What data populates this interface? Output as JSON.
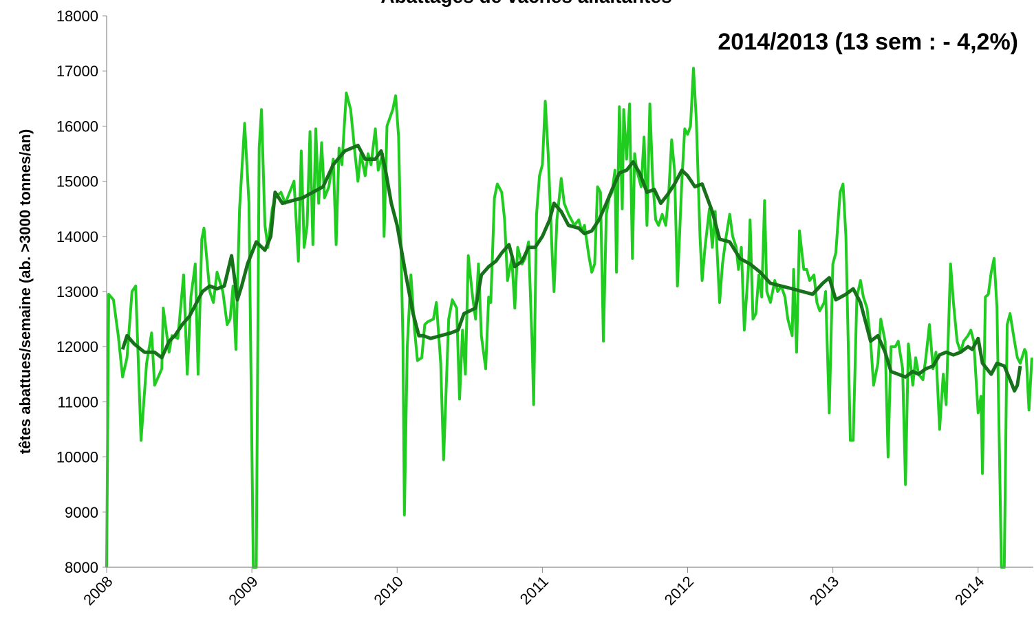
{
  "chart_data": {
    "type": "line",
    "title": "Abattages de  vaches allaitantes",
    "annotation": "2014/2013 (13 sem : - 4,2%)",
    "y_label": "têtes abattues/semaine (ab. >3000 tonnes/an)",
    "xlim": [
      2008,
      2014.38
    ],
    "xticks": [
      2008,
      2009,
      2010,
      2011,
      2012,
      2013,
      2014
    ],
    "ylim": [
      8000,
      18000
    ],
    "yticks": [
      8000,
      9000,
      10000,
      11000,
      12000,
      13000,
      14000,
      15000,
      16000,
      17000,
      18000
    ],
    "grid": true,
    "series": [
      {
        "color": "#1fcc1f",
        "x": [
          2008.0,
          2008.014,
          2008.047,
          2008.08,
          2008.11,
          2008.14,
          2008.175,
          2008.2,
          2008.237,
          2008.275,
          2008.31,
          2008.33,
          2008.38,
          2008.39,
          2008.43,
          2008.45,
          2008.49,
          2008.53,
          2008.555,
          2008.58,
          2008.61,
          2008.63,
          2008.655,
          2008.67,
          2008.71,
          2008.735,
          2008.76,
          2008.8,
          2008.83,
          2008.85,
          2008.87,
          2008.89,
          2008.915,
          2008.95,
          2008.98,
          2009.01,
          2009.03,
          2009.05,
          2009.066,
          2009.09,
          2009.11,
          2009.14,
          2009.16,
          2009.2,
          2009.23,
          2009.29,
          2009.32,
          2009.34,
          2009.36,
          2009.38,
          2009.4,
          2009.42,
          2009.44,
          2009.46,
          2009.48,
          2009.5,
          2009.53,
          2009.56,
          2009.58,
          2009.6,
          2009.62,
          2009.65,
          2009.68,
          2009.71,
          2009.73,
          2009.75,
          2009.78,
          2009.8,
          2009.82,
          2009.85,
          2009.87,
          2009.9,
          2009.91,
          2009.93,
          2009.97,
          2009.99,
          2010.01,
          2010.04,
          2010.05,
          2010.07,
          2010.095,
          2010.12,
          2010.14,
          2010.17,
          2010.19,
          2010.21,
          2010.25,
          2010.27,
          2010.3,
          2010.32,
          2010.355,
          2010.38,
          2010.41,
          2010.43,
          2010.45,
          2010.47,
          2010.49,
          2010.52,
          2010.54,
          2010.56,
          2010.58,
          2010.61,
          2010.63,
          2010.645,
          2010.67,
          2010.69,
          2010.72,
          2010.74,
          2010.76,
          2010.79,
          2010.81,
          2010.83,
          2010.86,
          2010.88,
          2010.905,
          2010.93,
          2010.94,
          2010.96,
          2010.98,
          2011.0,
          2011.02,
          2011.04,
          2011.07,
          2011.08,
          2011.1,
          2011.13,
          2011.15,
          2011.18,
          2011.2,
          2011.22,
          2011.25,
          2011.27,
          2011.29,
          2011.32,
          2011.34,
          2011.36,
          2011.38,
          2011.4,
          2011.42,
          2011.44,
          2011.46,
          2011.48,
          2011.5,
          2011.51,
          2011.53,
          2011.55,
          2011.56,
          2011.58,
          2011.6,
          2011.62,
          2011.635,
          2011.65,
          2011.68,
          2011.7,
          2011.72,
          2011.74,
          2011.76,
          2011.78,
          2011.8,
          2011.825,
          2011.85,
          2011.87,
          2011.89,
          2011.91,
          2011.93,
          2011.96,
          2011.98,
          2012.0,
          2012.02,
          2012.04,
          2012.06,
          2012.085,
          2012.1,
          2012.12,
          2012.15,
          2012.17,
          2012.19,
          2012.22,
          2012.24,
          2012.265,
          2012.29,
          2012.31,
          2012.335,
          2012.35,
          2012.37,
          2012.39,
          2012.42,
          2012.43,
          2012.45,
          2012.47,
          2012.49,
          2012.51,
          2012.53,
          2012.545,
          2012.57,
          2012.6,
          2012.62,
          2012.645,
          2012.67,
          2012.69,
          2012.72,
          2012.73,
          2012.75,
          2012.77,
          2012.8,
          2012.82,
          2012.84,
          2012.87,
          2012.89,
          2012.91,
          2012.94,
          2012.95,
          2012.975,
          2013.0,
          2013.02,
          2013.05,
          2013.07,
          2013.09,
          2013.12,
          2013.14,
          2013.165,
          2013.19,
          2013.21,
          2013.235,
          2013.26,
          2013.28,
          2013.31,
          2013.33,
          2013.36,
          2013.38,
          2013.4,
          2013.43,
          2013.45,
          2013.48,
          2013.5,
          2013.52,
          2013.55,
          2013.57,
          2013.59,
          2013.62,
          2013.64,
          2013.665,
          2013.69,
          2013.71,
          2013.735,
          2013.76,
          2013.78,
          2013.81,
          2013.83,
          2013.855,
          2013.88,
          2013.9,
          2013.93,
          2013.95,
          2013.97,
          2014.0,
          2014.02,
          2014.03,
          2014.05,
          2014.07,
          2014.09,
          2014.11,
          2014.13,
          2014.16,
          2014.18,
          2014.2,
          2014.22,
          2014.25,
          2014.27,
          2014.29,
          2014.32,
          2014.33,
          2014.35,
          2014.37
        ],
        "values": [
          8000,
          12950,
          12850,
          12200,
          11450,
          11800,
          13000,
          13100,
          10300,
          11700,
          12250,
          11300,
          11600,
          12700,
          11900,
          12200,
          12150,
          13300,
          11500,
          12900,
          13500,
          11500,
          13950,
          14150,
          13000,
          12800,
          13350,
          13000,
          12400,
          12500,
          13100,
          11950,
          14500,
          16050,
          14600,
          8000,
          8000,
          15600,
          16300,
          14200,
          13800,
          14500,
          14700,
          14800,
          14600,
          15000,
          13550,
          15550,
          13800,
          14200,
          15900,
          13850,
          15950,
          14600,
          15700,
          14700,
          14900,
          15400,
          13850,
          15600,
          15300,
          16600,
          16300,
          15500,
          15000,
          15500,
          15100,
          15500,
          15300,
          15950,
          15200,
          15500,
          14000,
          16000,
          16300,
          16550,
          15800,
          12100,
          8950,
          12000,
          13300,
          12300,
          11750,
          11800,
          12400,
          12450,
          12500,
          12800,
          11700,
          9950,
          12500,
          12850,
          12700,
          11050,
          12300,
          11500,
          13650,
          12900,
          12500,
          13500,
          12200,
          11600,
          12900,
          12800,
          14700,
          14950,
          14800,
          14300,
          13200,
          13600,
          12700,
          13800,
          13500,
          13600,
          13900,
          12000,
          10950,
          14400,
          15100,
          15300,
          16450,
          15500,
          13500,
          13000,
          14300,
          15050,
          14600,
          14400,
          14300,
          14200,
          14300,
          14100,
          14200,
          13650,
          13350,
          13500,
          14900,
          14800,
          12100,
          14400,
          14700,
          14800,
          15200,
          13350,
          16350,
          14500,
          16300,
          15400,
          16400,
          13600,
          15500,
          15200,
          14900,
          15800,
          14200,
          16400,
          15000,
          14300,
          14200,
          14400,
          14200,
          14800,
          15750,
          15200,
          13100,
          15000,
          15950,
          15850,
          16000,
          17050,
          16100,
          14000,
          13200,
          13800,
          14500,
          13800,
          14450,
          12800,
          13500,
          14000,
          14400,
          14000,
          13800,
          13400,
          13800,
          12300,
          13500,
          14300,
          12500,
          12600,
          13300,
          12900,
          14650,
          13000,
          12800,
          13200,
          13000,
          13100,
          12900,
          12500,
          12200,
          13400,
          11900,
          14100,
          13400,
          13400,
          13200,
          13300,
          12800,
          12650,
          12800,
          13000,
          10800,
          13500,
          13700,
          14800,
          14950,
          14000,
          10300,
          10300,
          12900,
          13200,
          12900,
          12700,
          12100,
          11300,
          11700,
          12500,
          12100,
          10000,
          12000,
          12000,
          12100,
          11600,
          9500,
          12050,
          11300,
          11800,
          11500,
          11400,
          11800,
          12400,
          11600,
          11900,
          10500,
          11500,
          10950,
          13500,
          12800,
          12100,
          11900,
          12100,
          12200,
          12300,
          12100,
          10800,
          11100,
          9700,
          12900,
          12950,
          13350,
          13600,
          12700,
          8000,
          8000,
          12400,
          12600,
          12100,
          11800,
          11700,
          11950,
          11900,
          10850,
          11800
        ]
      },
      {
        "color": "#17701a",
        "x": [
          2008.11,
          2008.14,
          2008.19,
          2008.26,
          2008.33,
          2008.38,
          2008.43,
          2008.47,
          2008.52,
          2008.57,
          2008.62,
          2008.66,
          2008.71,
          2008.76,
          2008.81,
          2008.86,
          2008.9,
          2008.93,
          2008.97,
          2009.03,
          2009.09,
          2009.13,
          2009.16,
          2009.21,
          2009.28,
          2009.35,
          2009.42,
          2009.49,
          2009.56,
          2009.64,
          2009.73,
          2009.78,
          2009.85,
          2009.89,
          2009.92,
          2009.96,
          2010.0,
          2010.06,
          2010.11,
          2010.15,
          2010.18,
          2010.23,
          2010.3,
          2010.37,
          2010.42,
          2010.46,
          2010.54,
          2010.58,
          2010.63,
          2010.68,
          2010.72,
          2010.77,
          2010.81,
          2010.86,
          2010.905,
          2010.95,
          2011.0,
          2011.05,
          2011.08,
          2011.13,
          2011.18,
          2011.25,
          2011.29,
          2011.34,
          2011.39,
          2011.44,
          2011.48,
          2011.53,
          2011.58,
          2011.625,
          2011.67,
          2011.72,
          2011.77,
          2011.815,
          2011.86,
          2011.91,
          2011.96,
          2012.0,
          2012.05,
          2012.1,
          2012.17,
          2012.22,
          2012.29,
          2012.36,
          2012.43,
          2012.5,
          2012.57,
          2012.645,
          2012.72,
          2012.79,
          2012.86,
          2012.93,
          2012.975,
          2013.02,
          2013.09,
          2013.14,
          2013.19,
          2013.26,
          2013.31,
          2013.36,
          2013.4,
          2013.45,
          2013.5,
          2013.55,
          2013.59,
          2013.64,
          2013.69,
          2013.735,
          2013.78,
          2013.83,
          2013.88,
          2013.93,
          2013.96,
          2014.0,
          2014.03,
          2014.09,
          2014.13,
          2014.18,
          2014.22,
          2014.25,
          2014.27,
          2014.29
        ],
        "values": [
          11950,
          12200,
          12050,
          11900,
          11900,
          11800,
          12100,
          12200,
          12400,
          12550,
          12800,
          13000,
          13100,
          13050,
          13100,
          13650,
          12850,
          13100,
          13500,
          13900,
          13750,
          14000,
          14800,
          14600,
          14650,
          14700,
          14800,
          14900,
          15300,
          15550,
          15650,
          15400,
          15400,
          15550,
          15200,
          14600,
          14200,
          13300,
          12600,
          12200,
          12200,
          12150,
          12200,
          12250,
          12300,
          12600,
          12700,
          13300,
          13450,
          13550,
          13700,
          13850,
          13450,
          13550,
          13800,
          13800,
          14000,
          14300,
          14600,
          14450,
          14200,
          14150,
          14050,
          14100,
          14300,
          14600,
          14850,
          15150,
          15200,
          15350,
          15150,
          14800,
          14850,
          14600,
          14750,
          14950,
          15200,
          15100,
          14900,
          14950,
          14450,
          13950,
          13900,
          13600,
          13500,
          13350,
          13150,
          13100,
          13050,
          13000,
          12950,
          13150,
          13250,
          12850,
          12950,
          13050,
          12800,
          12100,
          12200,
          11900,
          11550,
          11500,
          11450,
          11550,
          11500,
          11600,
          11650,
          11850,
          11900,
          11850,
          11900,
          12000,
          11950,
          12150,
          11700,
          11500,
          11700,
          11650,
          11400,
          11200,
          11300,
          11650
        ]
      }
    ]
  }
}
